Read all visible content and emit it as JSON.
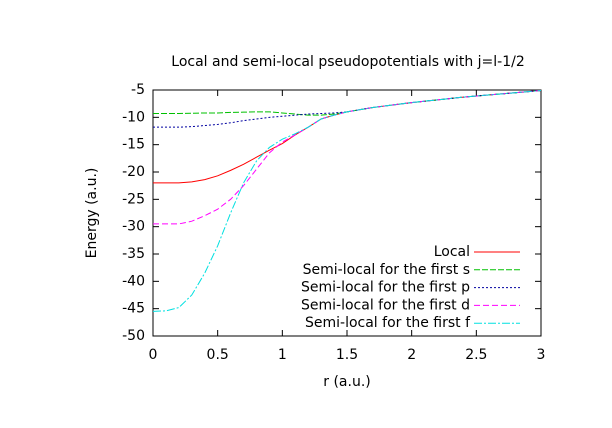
{
  "chart_data": {
    "type": "line",
    "title": "Local and semi-local pseudopotentials with j=l-1/2",
    "x_label": "r (a.u.)",
    "y_label": "Energy (a.u.)",
    "x": [
      0,
      0.1,
      0.2,
      0.3,
      0.4,
      0.5,
      0.6,
      0.7,
      0.8,
      0.9,
      1.0,
      1.1,
      1.2,
      1.3,
      1.4,
      1.5,
      1.6,
      1.7,
      1.8,
      1.9,
      2.0,
      2.2,
      2.4,
      2.6,
      2.8,
      3.0
    ],
    "series": [
      {
        "name": "Local",
        "color": "#ff0000",
        "values": [
          -22,
          -22,
          -22,
          -21.8,
          -21.4,
          -20.7,
          -19.7,
          -18.6,
          -17.3,
          -16,
          -14.8,
          -13.2,
          -11.8,
          -10.3,
          -9.6,
          -9.0,
          -8.6,
          -8.2,
          -7.9,
          -7.6,
          -7.3,
          -6.8,
          -6.3,
          -5.9,
          -5.5,
          -5.1
        ]
      },
      {
        "name": "Semi-local for the first s",
        "color": "#00c000",
        "values": [
          -9.3,
          -9.3,
          -9.3,
          -9.25,
          -9.2,
          -9.2,
          -9.1,
          -9.05,
          -9.0,
          -9.0,
          -9.2,
          -9.4,
          -9.6,
          -9.6,
          -9.4,
          -9.0,
          -8.6,
          -8.2,
          -7.9,
          -7.6,
          -7.3,
          -6.8,
          -6.3,
          -5.9,
          -5.5,
          -5.1
        ]
      },
      {
        "name": "Semi-local for the first p",
        "color": "#0000a0",
        "values": [
          -11.8,
          -11.8,
          -11.8,
          -11.7,
          -11.5,
          -11.3,
          -11.0,
          -10.6,
          -10.3,
          -10.0,
          -9.8,
          -9.6,
          -9.4,
          -9.3,
          -9.2,
          -9.0,
          -8.6,
          -8.2,
          -7.9,
          -7.6,
          -7.3,
          -6.8,
          -6.3,
          -5.9,
          -5.5,
          -5.1
        ]
      },
      {
        "name": "Semi-local for the first d",
        "color": "#ff00ff",
        "values": [
          -29.5,
          -29.5,
          -29.5,
          -29,
          -28,
          -26.8,
          -25,
          -22.5,
          -19.5,
          -16.5,
          -14.5,
          -13.2,
          -11.8,
          -10.3,
          -9.6,
          -9.0,
          -8.6,
          -8.2,
          -7.9,
          -7.6,
          -7.3,
          -6.8,
          -6.3,
          -5.9,
          -5.5,
          -5.1
        ]
      },
      {
        "name": "Semi-local for the first f",
        "color": "#00e0e0",
        "values": [
          -45.5,
          -45.4,
          -44.8,
          -42.5,
          -38.5,
          -33.5,
          -27.5,
          -22,
          -18,
          -15.5,
          -14,
          -13,
          -11.8,
          -10.3,
          -9.6,
          -9.0,
          -8.6,
          -8.2,
          -7.9,
          -7.6,
          -7.3,
          -6.8,
          -6.3,
          -5.9,
          -5.5,
          -5.1
        ]
      }
    ],
    "xlim": [
      0,
      3
    ],
    "ylim": [
      -50,
      -5
    ],
    "xticks": [
      0,
      0.5,
      1,
      1.5,
      2,
      2.5,
      3
    ],
    "yticks": [
      -5,
      -10,
      -15,
      -20,
      -25,
      -30,
      -35,
      -40,
      -45,
      -50
    ],
    "legend": "lower right"
  }
}
